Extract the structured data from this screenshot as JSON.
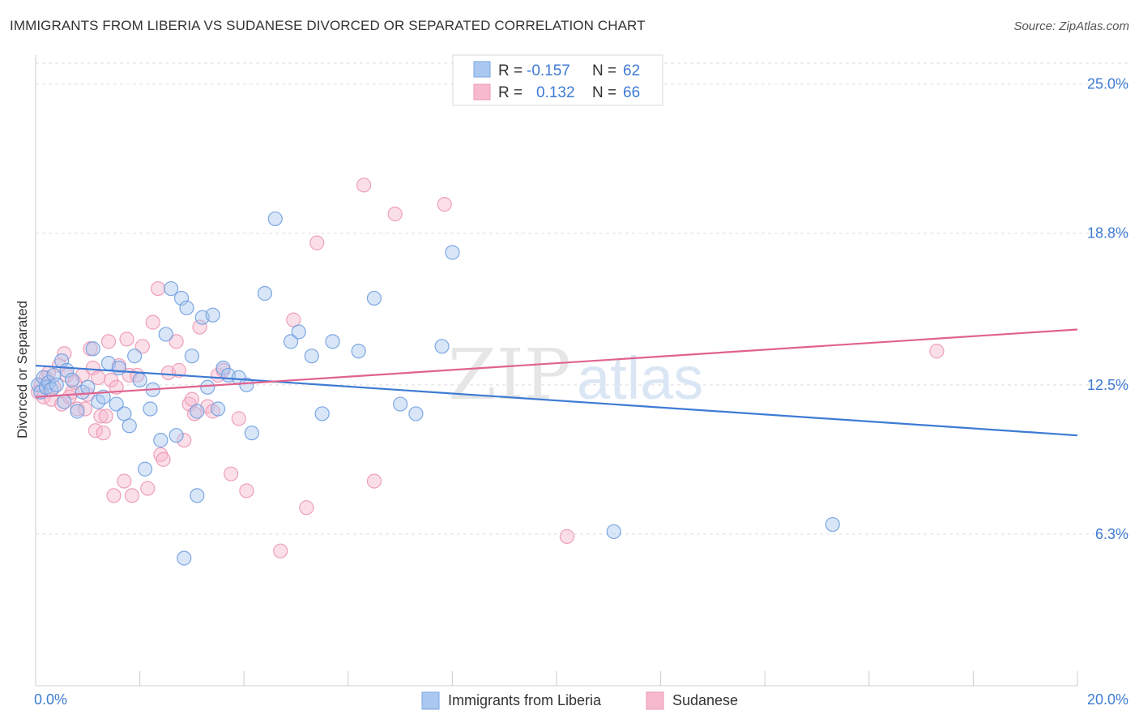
{
  "header": {
    "title": "IMMIGRANTS FROM LIBERIA VS SUDANESE DIVORCED OR SEPARATED CORRELATION CHART",
    "source": "Source: ZipAtlas.com"
  },
  "watermark": {
    "zip": "ZIP",
    "atlas": "atlas"
  },
  "colors": {
    "blue": "#3d7bd4",
    "blue_fill": "#aac8f0",
    "pink": "#e0628f",
    "pink_fill": "#f6b9cd",
    "grid": "#dddddd",
    "tick_text": "#3d7bd4"
  },
  "stats": {
    "blue": {
      "r_label": "R =",
      "r": "-0.157",
      "n_label": "N =",
      "n": "62"
    },
    "pink": {
      "r_label": "R =",
      "r": "0.132",
      "n_label": "N =",
      "n": "66"
    }
  },
  "chart_data": {
    "type": "scatter",
    "title": "IMMIGRANTS FROM LIBERIA VS SUDANESE DIVORCED OR SEPARATED CORRELATION CHART",
    "xlabel": "",
    "ylabel": "Divorced or Separated",
    "xlim": [
      0,
      20
    ],
    "ylim": [
      0,
      26.2
    ],
    "x_tick_labels": [
      "0.0%",
      "20.0%"
    ],
    "y_ticks": [
      6.3,
      12.5,
      18.8,
      25.0
    ],
    "y_tick_labels": [
      "6.3%",
      "12.5%",
      "18.8%",
      "25.0%"
    ],
    "grid": true,
    "legend_position": "bottom",
    "series": [
      {
        "name": "Immigrants from Liberia",
        "color": "#3d7bd4",
        "trend": {
          "x": [
            0,
            20
          ],
          "y": [
            13.3,
            10.4
          ]
        },
        "points": [
          [
            0.05,
            12.5
          ],
          [
            0.1,
            12.2
          ],
          [
            0.15,
            12.8
          ],
          [
            0.2,
            12.4
          ],
          [
            0.25,
            12.6
          ],
          [
            0.3,
            12.3
          ],
          [
            0.35,
            12.9
          ],
          [
            0.4,
            12.5
          ],
          [
            0.5,
            13.5
          ],
          [
            0.55,
            11.8
          ],
          [
            0.6,
            13.1
          ],
          [
            0.7,
            12.7
          ],
          [
            0.8,
            11.4
          ],
          [
            0.9,
            12.2
          ],
          [
            1.0,
            12.4
          ],
          [
            1.1,
            14.0
          ],
          [
            1.2,
            11.8
          ],
          [
            1.3,
            12.0
          ],
          [
            1.4,
            13.4
          ],
          [
            1.55,
            11.7
          ],
          [
            1.6,
            13.2
          ],
          [
            1.7,
            11.3
          ],
          [
            1.8,
            10.8
          ],
          [
            1.9,
            13.7
          ],
          [
            2.0,
            12.7
          ],
          [
            2.1,
            9.0
          ],
          [
            2.2,
            11.5
          ],
          [
            2.25,
            12.3
          ],
          [
            2.4,
            10.2
          ],
          [
            2.5,
            14.6
          ],
          [
            2.6,
            16.5
          ],
          [
            2.7,
            10.4
          ],
          [
            2.8,
            16.1
          ],
          [
            2.9,
            15.7
          ],
          [
            3.0,
            13.7
          ],
          [
            3.1,
            11.4
          ],
          [
            3.2,
            15.3
          ],
          [
            3.3,
            12.4
          ],
          [
            3.5,
            11.5
          ],
          [
            3.4,
            15.4
          ],
          [
            3.6,
            13.2
          ],
          [
            3.7,
            12.9
          ],
          [
            3.9,
            12.8
          ],
          [
            4.05,
            12.5
          ],
          [
            4.15,
            10.5
          ],
          [
            4.4,
            16.3
          ],
          [
            4.6,
            19.4
          ],
          [
            4.9,
            14.3
          ],
          [
            5.05,
            14.7
          ],
          [
            5.3,
            13.7
          ],
          [
            5.5,
            11.3
          ],
          [
            5.7,
            14.3
          ],
          [
            6.2,
            13.9
          ],
          [
            6.5,
            16.1
          ],
          [
            7.0,
            11.7
          ],
          [
            7.3,
            11.3
          ],
          [
            7.8,
            14.1
          ],
          [
            8.0,
            18.0
          ],
          [
            11.1,
            6.4
          ],
          [
            15.3,
            6.7
          ],
          [
            2.85,
            5.3
          ],
          [
            3.1,
            7.9
          ]
        ]
      },
      {
        "name": "Sudanese",
        "color": "#e0628f",
        "trend": {
          "x": [
            0,
            20
          ],
          "y": [
            12.0,
            14.8
          ]
        },
        "points": [
          [
            0.05,
            12.2
          ],
          [
            0.1,
            12.5
          ],
          [
            0.15,
            12.0
          ],
          [
            0.2,
            12.8
          ],
          [
            0.3,
            11.9
          ],
          [
            0.35,
            12.4
          ],
          [
            0.45,
            13.3
          ],
          [
            0.5,
            11.7
          ],
          [
            0.55,
            13.8
          ],
          [
            0.6,
            12.9
          ],
          [
            0.7,
            12.2
          ],
          [
            0.75,
            12.6
          ],
          [
            0.8,
            11.5
          ],
          [
            0.9,
            12.9
          ],
          [
            0.95,
            11.5
          ],
          [
            1.0,
            12.1
          ],
          [
            1.05,
            14.0
          ],
          [
            1.1,
            13.2
          ],
          [
            1.15,
            10.6
          ],
          [
            1.2,
            12.8
          ],
          [
            1.25,
            11.2
          ],
          [
            1.3,
            10.5
          ],
          [
            1.35,
            11.2
          ],
          [
            1.4,
            14.3
          ],
          [
            1.45,
            12.7
          ],
          [
            1.5,
            7.9
          ],
          [
            1.55,
            12.4
          ],
          [
            1.6,
            13.3
          ],
          [
            1.7,
            8.5
          ],
          [
            1.75,
            14.4
          ],
          [
            1.8,
            12.9
          ],
          [
            1.85,
            7.9
          ],
          [
            1.95,
            12.9
          ],
          [
            2.05,
            14.1
          ],
          [
            2.15,
            8.2
          ],
          [
            2.25,
            15.1
          ],
          [
            2.35,
            16.5
          ],
          [
            2.4,
            9.6
          ],
          [
            2.45,
            9.4
          ],
          [
            2.55,
            13.0
          ],
          [
            2.7,
            14.3
          ],
          [
            2.75,
            13.1
          ],
          [
            2.85,
            10.2
          ],
          [
            2.95,
            11.7
          ],
          [
            3.05,
            11.3
          ],
          [
            3.15,
            14.9
          ],
          [
            3.3,
            11.6
          ],
          [
            3.4,
            11.4
          ],
          [
            3.5,
            12.9
          ],
          [
            3.6,
            13.1
          ],
          [
            3.75,
            8.8
          ],
          [
            3.9,
            11.1
          ],
          [
            4.05,
            8.1
          ],
          [
            4.7,
            5.6
          ],
          [
            4.95,
            15.2
          ],
          [
            5.2,
            7.4
          ],
          [
            5.4,
            18.4
          ],
          [
            6.3,
            20.8
          ],
          [
            6.5,
            8.5
          ],
          [
            6.9,
            19.6
          ],
          [
            7.85,
            20.0
          ],
          [
            10.2,
            6.2
          ],
          [
            17.3,
            13.9
          ],
          [
            0.25,
            13.0
          ],
          [
            0.65,
            12.0
          ],
          [
            3.0,
            11.9
          ]
        ]
      }
    ]
  },
  "legend": {
    "series_1_label": "Immigrants from Liberia",
    "series_2_label": "Sudanese"
  }
}
